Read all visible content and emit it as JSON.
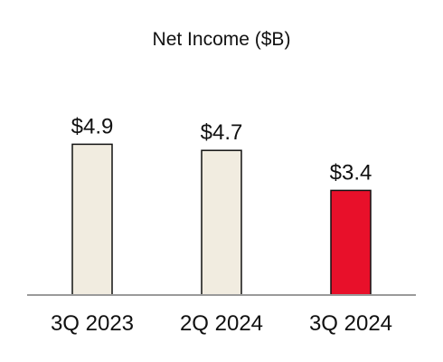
{
  "chart_data": {
    "type": "bar",
    "title": "Net Income ($B)",
    "categories": [
      "3Q 2023",
      "2Q 2024",
      "3Q 2024"
    ],
    "values": [
      4.9,
      4.7,
      3.4
    ],
    "value_labels": [
      "$4.9",
      "$4.7",
      "$3.4"
    ],
    "xlabel": "",
    "ylabel": "",
    "ylim": [
      0,
      7
    ],
    "grid": false,
    "legend": "none",
    "colors": {
      "default_bar": "#f1ece0",
      "highlight_bar": "#e8102a",
      "bar_outline": "#111111",
      "baseline": "#9a9a9a"
    },
    "highlight_index": 2
  }
}
